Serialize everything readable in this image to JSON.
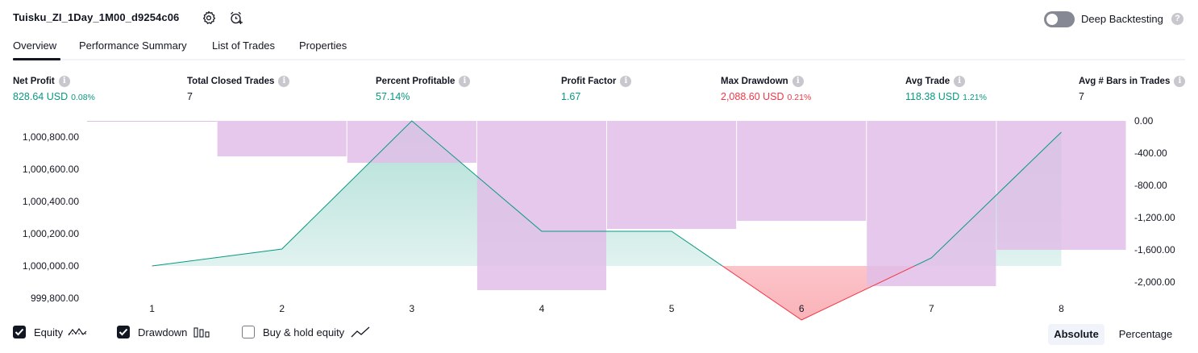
{
  "header": {
    "strategy_name": "Tuisku_ZI_1Day_1M00_d9254c06",
    "settings_icon": "gear-icon",
    "alert_icon": "add-alarm-icon",
    "deep_backtesting_label": "Deep Backtesting",
    "deep_backtesting_enabled": false,
    "help_glyph": "?"
  },
  "tabs": [
    {
      "label": "Overview",
      "active": true
    },
    {
      "label": "Performance Summary",
      "active": false
    },
    {
      "label": "List of Trades",
      "active": false
    },
    {
      "label": "Properties",
      "active": false
    }
  ],
  "metrics": [
    {
      "label": "Net Profit",
      "value": "828.64 USD",
      "pct": "0.08%",
      "color": "#089981"
    },
    {
      "label": "Total Closed Trades",
      "value": "7",
      "pct": "",
      "color": "#131722"
    },
    {
      "label": "Percent Profitable",
      "value": "57.14%",
      "pct": "",
      "color": "#089981"
    },
    {
      "label": "Profit Factor",
      "value": "1.67",
      "pct": "",
      "color": "#089981"
    },
    {
      "label": "Max Drawdown",
      "value": "2,088.60 USD",
      "pct": "0.21%",
      "color": "#f23645"
    },
    {
      "label": "Avg Trade",
      "value": "118.38 USD",
      "pct": "1.21%",
      "color": "#089981"
    },
    {
      "label": "Avg # Bars in Trades",
      "value": "7",
      "pct": "",
      "color": "#131722"
    }
  ],
  "info_glyph": "i",
  "chart_data": {
    "type": "line+bar",
    "x_categories": [
      "1",
      "2",
      "3",
      "4",
      "5",
      "6",
      "7",
      "8"
    ],
    "equity": {
      "x": [
        1,
        2,
        3,
        4,
        5,
        6,
        7,
        8
      ],
      "y": [
        1000000.0,
        1000105.0,
        1000900.0,
        1000215.0,
        1000215.0,
        999665.0,
        1000050.0,
        1000830.0
      ],
      "baseline": 1000000.0,
      "color_above": "#089981",
      "color_below": "#f23645"
    },
    "drawdown": {
      "x": [
        0.5,
        1.5,
        2.5,
        3.5,
        4.5,
        5.5,
        6.5,
        7.5
      ],
      "values": [
        0,
        -440,
        -520,
        -2100,
        -1340,
        -1240,
        -2050,
        -1600
      ],
      "color": "#e1bee7"
    },
    "y_left": {
      "ticks": [
        "1,000,800.00",
        "1,000,600.00",
        "1,000,400.00",
        "1,000,200.00",
        "1,000,000.00",
        "999,800.00"
      ],
      "tick_values": [
        1000800,
        1000600,
        1000400,
        1000200,
        1000000,
        999800
      ]
    },
    "y_right": {
      "ticks": [
        "0.00",
        "-400.00",
        "-800.00",
        "-1,200.00",
        "-1,600.00",
        "-2,000.00"
      ],
      "tick_values": [
        0,
        -400,
        -800,
        -1200,
        -1600,
        -2000
      ]
    }
  },
  "legend": {
    "equity": {
      "label": "Equity",
      "checked": true,
      "icon": "equity-line-icon"
    },
    "drawdown": {
      "label": "Drawdown",
      "checked": true,
      "icon": "drawdown-bars-icon"
    },
    "buy_hold": {
      "label": "Buy & hold equity",
      "checked": false,
      "icon": "buy-hold-line-icon"
    }
  },
  "mode": {
    "absolute_label": "Absolute",
    "percentage_label": "Percentage",
    "selected": "Absolute"
  }
}
